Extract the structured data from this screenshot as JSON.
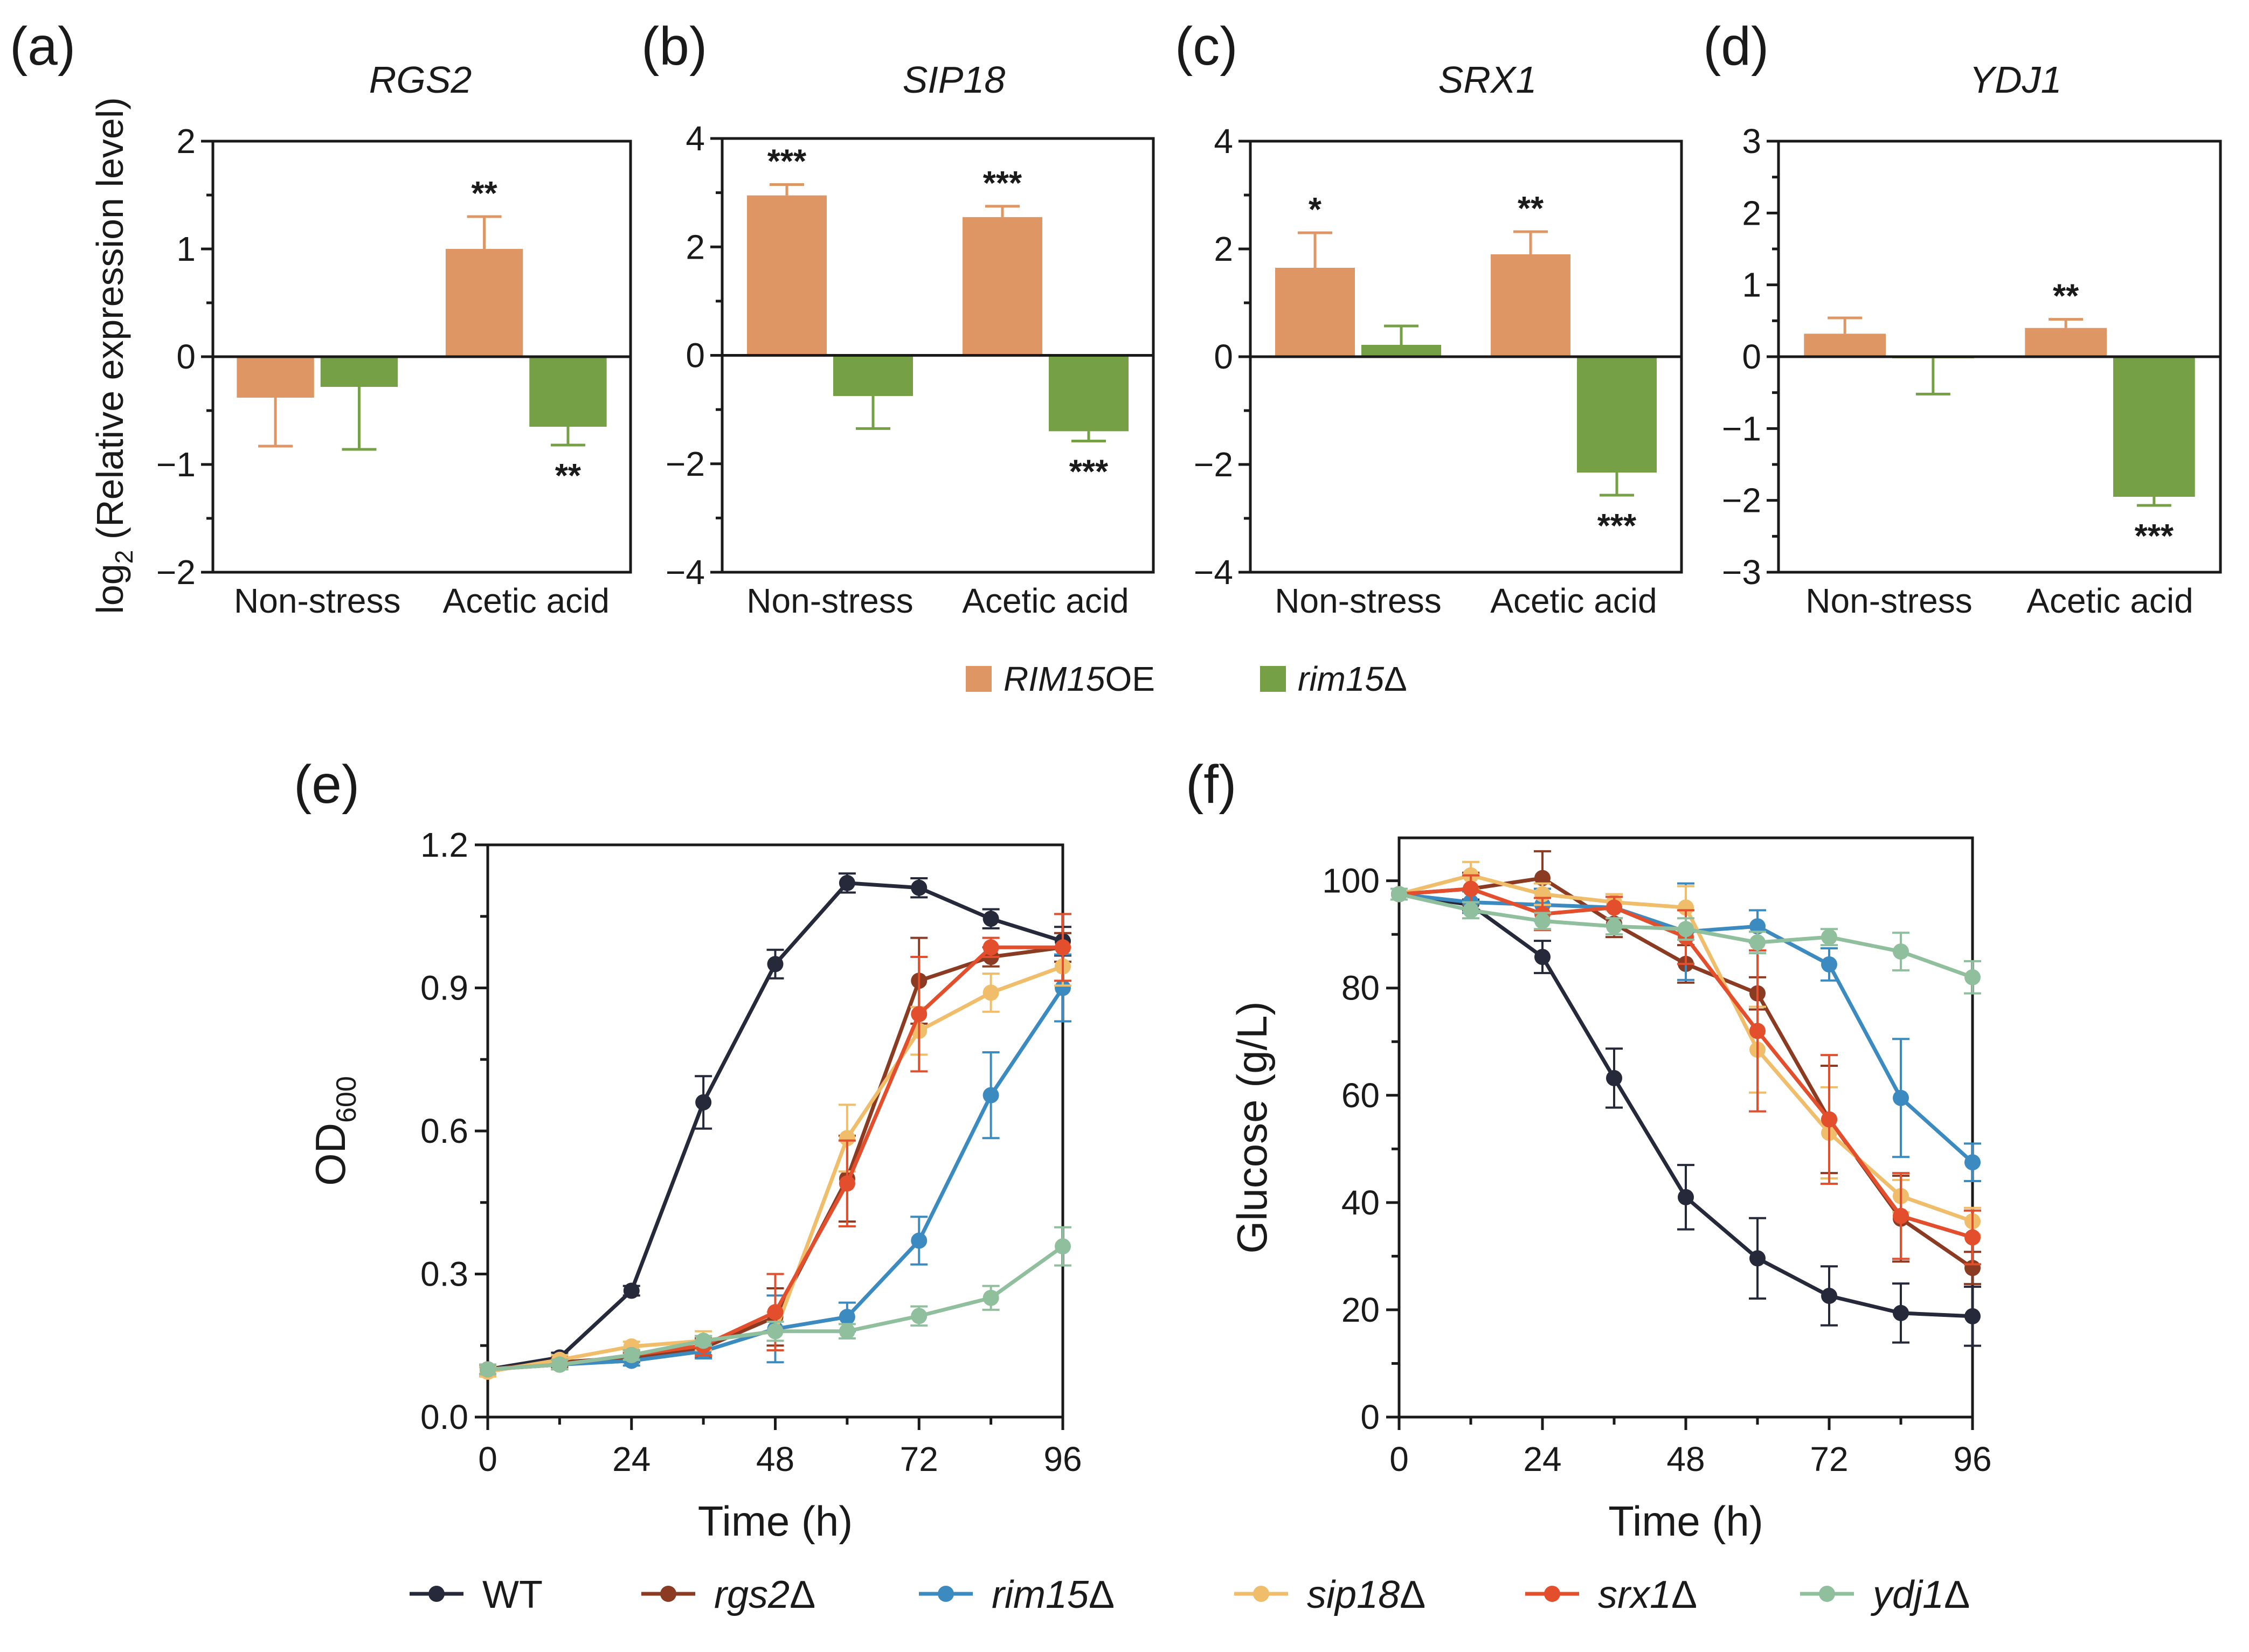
{
  "colors": {
    "oe": "#de9665",
    "del": "#76a046",
    "WT": "#25293a",
    "rgs2": "#8a3b22",
    "rim15": "#3c8bc0",
    "sip18": "#f0bd6a",
    "srx1": "#e34e2d",
    "ydj1": "#8fbf9c"
  },
  "bar_legend": {
    "oe_label_italic": "RIM15",
    "oe_label_rest": "OE",
    "del_label_italic": "rim15",
    "del_label_rest": "Δ"
  },
  "bar_y_label": "log",
  "bar_y_label_sub": "2",
  "bar_y_label_rest": " (Relative expression level)",
  "line_legend": [
    {
      "key": "WT",
      "label": "WT",
      "italic": false
    },
    {
      "key": "rgs2",
      "label": "rgs2",
      "italic": true
    },
    {
      "key": "rim15",
      "label": "rim15",
      "italic": true
    },
    {
      "key": "sip18",
      "label": "sip18",
      "italic": true
    },
    {
      "key": "srx1",
      "label": "srx1",
      "italic": true
    },
    {
      "key": "ydj1",
      "label": "ydj1",
      "italic": true
    }
  ],
  "delta": "Δ",
  "chart_data": [
    {
      "panel": "(a)",
      "type": "bar",
      "title": "RGS2",
      "categories": [
        "Non-stress",
        "Acetic acid"
      ],
      "ylim": [
        -2,
        2
      ],
      "yticks": [
        -2,
        -1,
        0,
        1,
        2
      ],
      "ytick_labels": [
        "−2",
        "−1",
        "0",
        "1",
        "2"
      ],
      "series": [
        {
          "name": "RIM15OE",
          "values": [
            -0.38,
            1.0
          ],
          "errors": [
            0.45,
            0.3
          ],
          "stars": [
            "",
            "**"
          ]
        },
        {
          "name": "rim15Δ",
          "values": [
            -0.28,
            -0.65
          ],
          "errors": [
            0.58,
            0.17
          ],
          "stars": [
            "",
            "**"
          ]
        }
      ]
    },
    {
      "panel": "(b)",
      "type": "bar",
      "title": "SIP18",
      "categories": [
        "Non-stress",
        "Acetic acid"
      ],
      "ylim": [
        -4,
        4
      ],
      "yticks": [
        -4,
        -2,
        0,
        2,
        4
      ],
      "ytick_labels": [
        "−4",
        "−2",
        "0",
        "2",
        "4"
      ],
      "series": [
        {
          "name": "RIM15OE",
          "values": [
            2.95,
            2.55
          ],
          "errors": [
            0.2,
            0.2
          ],
          "stars": [
            "***",
            "***"
          ]
        },
        {
          "name": "rim15Δ",
          "values": [
            -0.75,
            -1.4
          ],
          "errors": [
            0.6,
            0.18
          ],
          "stars": [
            "",
            "***"
          ]
        }
      ]
    },
    {
      "panel": "(c)",
      "type": "bar",
      "title": "SRX1",
      "categories": [
        "Non-stress",
        "Acetic acid"
      ],
      "ylim": [
        -4,
        4
      ],
      "yticks": [
        -4,
        -2,
        0,
        2,
        4
      ],
      "ytick_labels": [
        "−4",
        "−2",
        "0",
        "2",
        "4"
      ],
      "series": [
        {
          "name": "RIM15OE",
          "values": [
            1.65,
            1.9
          ],
          "errors": [
            0.65,
            0.42
          ],
          "stars": [
            "*",
            "**"
          ]
        },
        {
          "name": "rim15Δ",
          "values": [
            0.22,
            -2.15
          ],
          "errors": [
            0.35,
            0.42
          ],
          "stars": [
            "",
            "***"
          ]
        }
      ]
    },
    {
      "panel": "(d)",
      "type": "bar",
      "title": "YDJ1",
      "categories": [
        "Non-stress",
        "Acetic acid"
      ],
      "ylim": [
        -3,
        3
      ],
      "yticks": [
        -3,
        -2,
        -1,
        0,
        1,
        2,
        3
      ],
      "ytick_labels": [
        "−3",
        "−2",
        "−1",
        "0",
        "1",
        "2",
        "3"
      ],
      "series": [
        {
          "name": "RIM15OE",
          "values": [
            0.32,
            0.4
          ],
          "errors": [
            0.22,
            0.12
          ],
          "stars": [
            "",
            "**"
          ]
        },
        {
          "name": "rim15Δ",
          "values": [
            -0.02,
            -1.95
          ],
          "errors": [
            0.5,
            0.12
          ],
          "stars": [
            "",
            "***"
          ]
        }
      ]
    },
    {
      "panel": "(e)",
      "type": "line",
      "xlabel": "Time (h)",
      "ylabel": "OD",
      "ylabel_sub": "600",
      "xlim": [
        0,
        96
      ],
      "ylim": [
        0,
        1.2
      ],
      "xticks": [
        0,
        24,
        48,
        72,
        96
      ],
      "xtick_labels": [
        "0",
        "24",
        "48",
        "72",
        "96"
      ],
      "yticks": [
        0,
        0.3,
        0.6,
        0.9,
        1.2
      ],
      "ytick_labels": [
        "0.0",
        "0.3",
        "0.6",
        "0.9",
        "1.2"
      ],
      "x": [
        0,
        12,
        24,
        36,
        48,
        60,
        72,
        84,
        96
      ],
      "series": [
        {
          "key": "WT",
          "values": [
            0.1,
            0.125,
            0.265,
            0.66,
            0.95,
            1.12,
            1.11,
            1.045,
            0.998
          ],
          "errors": [
            0.01,
            0.01,
            0.01,
            0.055,
            0.03,
            0.02,
            0.02,
            0.02,
            0.03
          ]
        },
        {
          "key": "rgs2",
          "values": [
            0.1,
            0.115,
            0.125,
            0.145,
            0.21,
            0.5,
            0.915,
            0.965,
            0.985
          ],
          "errors": [
            0.01,
            0.01,
            0.01,
            0.02,
            0.06,
            0.09,
            0.09,
            0.02,
            0.03
          ]
        },
        {
          "key": "rim15",
          "values": [
            0.1,
            0.11,
            0.118,
            0.138,
            0.185,
            0.21,
            0.37,
            0.675,
            0.9
          ],
          "errors": [
            0.01,
            0.01,
            0.01,
            0.015,
            0.07,
            0.03,
            0.05,
            0.09,
            0.07
          ]
        },
        {
          "key": "sip18",
          "values": [
            0.095,
            0.12,
            0.148,
            0.16,
            0.18,
            0.585,
            0.81,
            0.89,
            0.945
          ],
          "errors": [
            0.01,
            0.01,
            0.01,
            0.02,
            0.04,
            0.07,
            0.05,
            0.04,
            0.04
          ]
        },
        {
          "key": "srx1",
          "values": [
            0.1,
            0.11,
            0.13,
            0.15,
            0.22,
            0.49,
            0.845,
            0.985,
            0.985
          ],
          "errors": [
            0.01,
            0.01,
            0.01,
            0.02,
            0.08,
            0.09,
            0.12,
            0.02,
            0.07
          ]
        },
        {
          "key": "ydj1",
          "values": [
            0.1,
            0.11,
            0.13,
            0.16,
            0.18,
            0.18,
            0.212,
            0.25,
            0.358
          ],
          "errors": [
            0.01,
            0.01,
            0.01,
            0.01,
            0.02,
            0.015,
            0.02,
            0.025,
            0.04
          ]
        }
      ]
    },
    {
      "panel": "(f)",
      "type": "line",
      "xlabel": "Time (h)",
      "ylabel": "Glucose (g/L)",
      "xlim": [
        0,
        96
      ],
      "ylim": [
        0,
        108
      ],
      "xticks": [
        0,
        24,
        48,
        72,
        96
      ],
      "xtick_labels": [
        "0",
        "24",
        "48",
        "72",
        "96"
      ],
      "yticks": [
        0,
        20,
        40,
        60,
        80,
        100
      ],
      "ytick_labels": [
        "0",
        "20",
        "40",
        "60",
        "80",
        "100"
      ],
      "x": [
        0,
        12,
        24,
        36,
        48,
        60,
        72,
        84,
        96
      ],
      "series": [
        {
          "key": "WT",
          "values": [
            97.5,
            95.5,
            85.8,
            63.2,
            41,
            29.6,
            22.6,
            19.4,
            18.8
          ],
          "errors": [
            1,
            1,
            3,
            5.5,
            6,
            7.5,
            5.5,
            5.5,
            5.5
          ]
        },
        {
          "key": "rgs2",
          "values": [
            97.5,
            98.5,
            100.5,
            92,
            84.5,
            79,
            55.5,
            37,
            27.8
          ],
          "errors": [
            1,
            3,
            5,
            2.5,
            3.5,
            3,
            10,
            8,
            3
          ]
        },
        {
          "key": "rim15",
          "values": [
            97.5,
            96,
            95.5,
            95,
            90.5,
            91.5,
            84.4,
            59.5,
            47.5
          ],
          "errors": [
            1,
            2,
            3,
            2,
            9,
            3,
            3,
            11,
            3.5
          ]
        },
        {
          "key": "sip18",
          "values": [
            97.5,
            101,
            97.5,
            96,
            95,
            68.5,
            53,
            41.2,
            36.5
          ],
          "errors": [
            1,
            2.5,
            2,
            1.5,
            4,
            8,
            8.5,
            3,
            2.5
          ]
        },
        {
          "key": "srx1",
          "values": [
            97.5,
            98.5,
            93.8,
            95,
            89.5,
            72,
            55.5,
            37.5,
            33.5
          ],
          "errors": [
            1,
            2.5,
            3,
            2,
            5,
            15,
            12,
            8,
            5
          ]
        },
        {
          "key": "ydj1",
          "values": [
            97.5,
            94.5,
            92.5,
            91.5,
            91,
            88.5,
            89.5,
            86.8,
            82
          ],
          "errors": [
            1,
            1.5,
            1.5,
            1.5,
            2,
            2,
            1.5,
            3.5,
            3
          ]
        }
      ]
    }
  ]
}
